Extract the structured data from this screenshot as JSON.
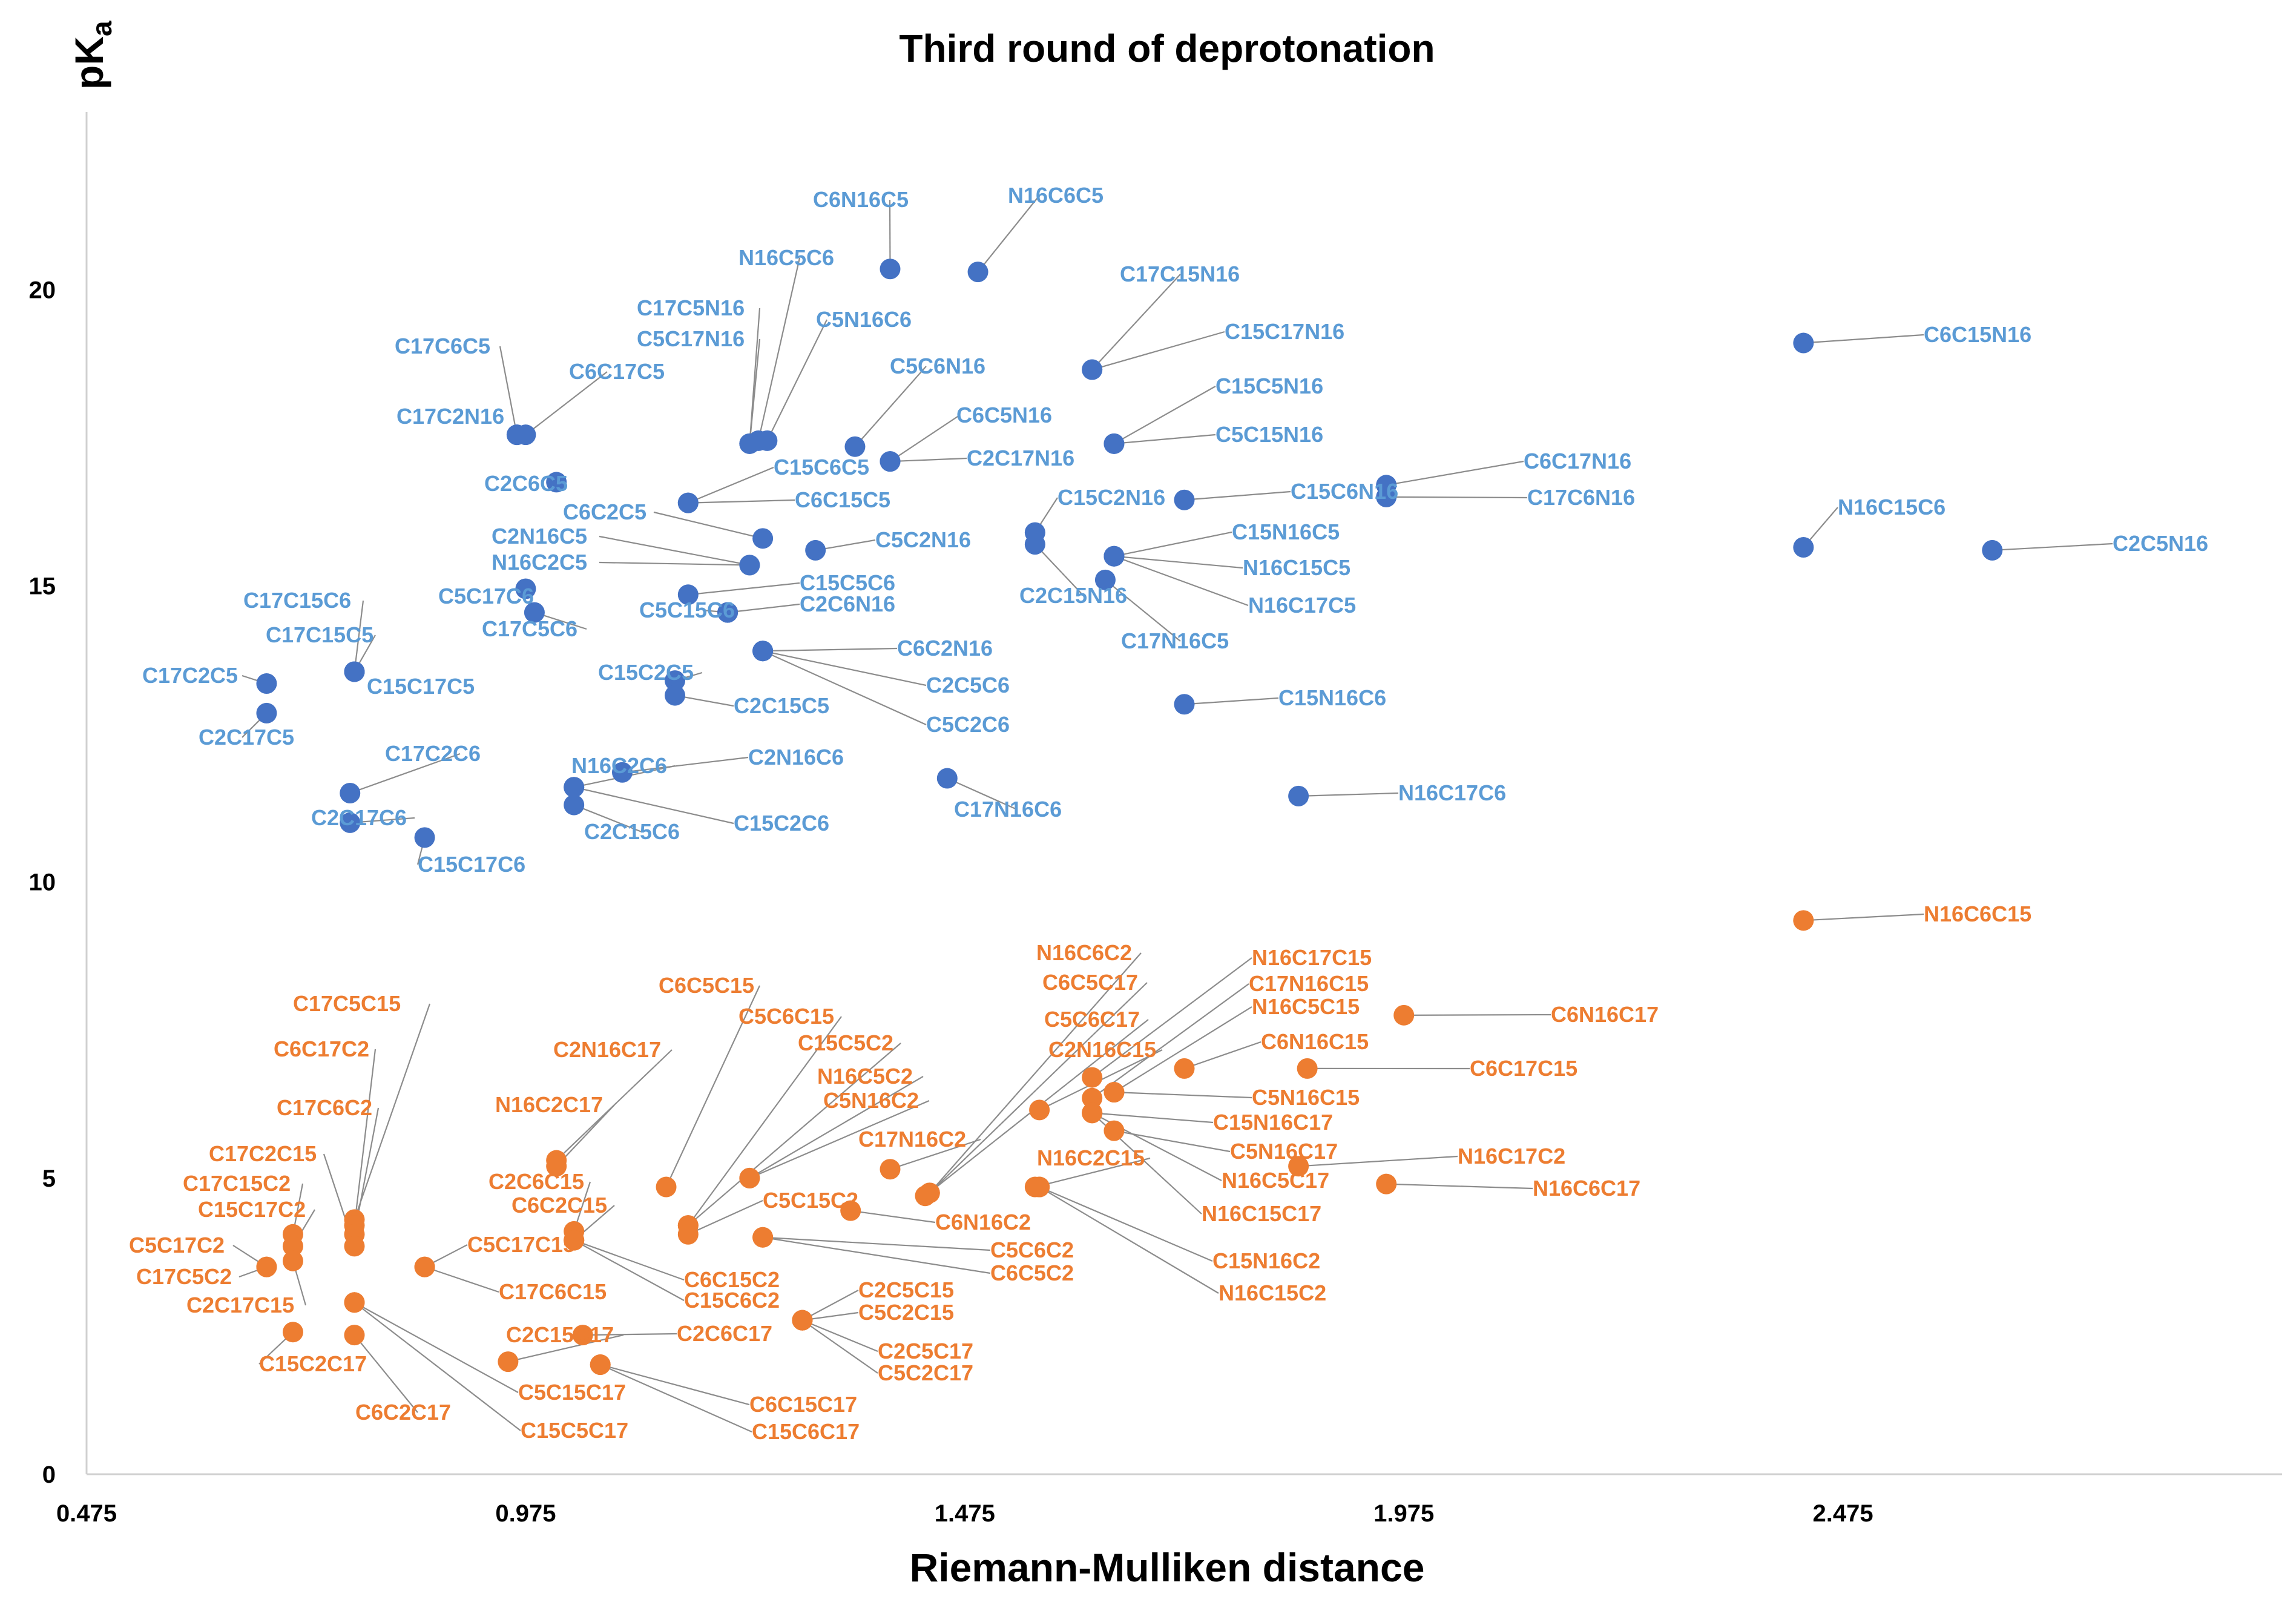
{
  "chart_data": {
    "type": "scatter",
    "title": "Third round of deprotonation",
    "xlabel": "Riemann-Mulliken distance",
    "ylabel": "pKa",
    "xlim": [
      0.475,
      2.975
    ],
    "ylim": [
      0,
      23
    ],
    "x_ticks": [
      "0.475",
      "0.975",
      "1.475",
      "1.975",
      "2.475"
    ],
    "y_ticks": [
      "0",
      "5",
      "10",
      "15",
      "20"
    ],
    "grid": false,
    "legend": "none",
    "colors": {
      "blue": "#4472C4",
      "blue_label": "#5B9BD5",
      "orange": "#ED7D31"
    },
    "series": [
      {
        "color": "blue",
        "points": [
          {
            "x": 1.39,
            "y": 20.35,
            "label": "C6N16C5"
          },
          {
            "x": 1.49,
            "y": 20.3,
            "label": "N16C6C5"
          },
          {
            "x": 1.24,
            "y": 17.45,
            "label": "N16C5C6"
          },
          {
            "x": 1.23,
            "y": 17.4,
            "label": "C17C5N16"
          },
          {
            "x": 1.23,
            "y": 17.4,
            "label": "C5C17N16"
          },
          {
            "x": 1.25,
            "y": 17.45,
            "label": "C5N16C6"
          },
          {
            "x": 1.35,
            "y": 17.35,
            "label": "C5C6N16"
          },
          {
            "x": 1.39,
            "y": 17.1,
            "label": "C6C5N16"
          },
          {
            "x": 1.39,
            "y": 17.1,
            "label": "C2C17N16"
          },
          {
            "x": 1.62,
            "y": 18.65,
            "label": "C17C15N16"
          },
          {
            "x": 1.62,
            "y": 18.65,
            "label": "C15C17N16"
          },
          {
            "x": 1.645,
            "y": 17.4,
            "label": "C15C5N16"
          },
          {
            "x": 1.645,
            "y": 17.4,
            "label": "C5C15N16"
          },
          {
            "x": 1.725,
            "y": 16.45,
            "label": "C15C6N16"
          },
          {
            "x": 1.955,
            "y": 16.7,
            "label": "C6C17N16"
          },
          {
            "x": 1.955,
            "y": 16.5,
            "label": "C17C6N16"
          },
          {
            "x": 2.43,
            "y": 19.1,
            "label": "C6C15N16"
          },
          {
            "x": 2.43,
            "y": 15.65,
            "label": "N16C15C6"
          },
          {
            "x": 2.645,
            "y": 15.6,
            "label": "C2C5N16"
          },
          {
            "x": 0.965,
            "y": 17.55,
            "label": "C17C6C5"
          },
          {
            "x": 0.975,
            "y": 17.55,
            "label": "C6C17C5"
          },
          {
            "x": 0.965,
            "y": 17.55,
            "label": "C17C2N16"
          },
          {
            "x": 1.01,
            "y": 16.75,
            "label": "C2C6C5"
          },
          {
            "x": 1.16,
            "y": 16.4,
            "label": "C15C6C5"
          },
          {
            "x": 1.16,
            "y": 16.4,
            "label": "C6C15C5"
          },
          {
            "x": 1.245,
            "y": 15.8,
            "label": "C6C2C5"
          },
          {
            "x": 1.23,
            "y": 15.35,
            "label": "C2N16C5"
          },
          {
            "x": 1.23,
            "y": 15.35,
            "label": "N16C2C5"
          },
          {
            "x": 1.305,
            "y": 15.6,
            "label": "C5C2N16"
          },
          {
            "x": 0.975,
            "y": 14.95,
            "label": "C5C17C6"
          },
          {
            "x": 0.985,
            "y": 14.55,
            "label": "C17C5C6"
          },
          {
            "x": 1.16,
            "y": 14.85,
            "label": "C15C5C6"
          },
          {
            "x": 1.205,
            "y": 14.55,
            "label": "C5C15C6"
          },
          {
            "x": 1.205,
            "y": 14.55,
            "label": "C2C6N16"
          },
          {
            "x": 1.245,
            "y": 13.9,
            "label": "C6C2N16"
          },
          {
            "x": 1.145,
            "y": 13.4,
            "label": "C15C2C5"
          },
          {
            "x": 1.145,
            "y": 13.15,
            "label": "C2C15C5"
          },
          {
            "x": 1.245,
            "y": 13.9,
            "label": "C2C5C6"
          },
          {
            "x": 1.245,
            "y": 13.9,
            "label": "C5C2C6"
          },
          {
            "x": 1.555,
            "y": 15.9,
            "label": "C15C2N16"
          },
          {
            "x": 1.555,
            "y": 15.7,
            "label": "C2C15N16"
          },
          {
            "x": 1.645,
            "y": 15.5,
            "label": "C15N16C5"
          },
          {
            "x": 1.645,
            "y": 15.5,
            "label": "N16C15C5"
          },
          {
            "x": 1.645,
            "y": 15.5,
            "label": "N16C17C5"
          },
          {
            "x": 1.635,
            "y": 15.1,
            "label": "C17N16C5"
          },
          {
            "x": 0.78,
            "y": 13.55,
            "label": "C17C15C6"
          },
          {
            "x": 0.78,
            "y": 13.55,
            "label": "C17C15C5"
          },
          {
            "x": 0.78,
            "y": 13.55,
            "label": "C15C17C5"
          },
          {
            "x": 0.68,
            "y": 13.35,
            "label": "C17C2C5"
          },
          {
            "x": 0.68,
            "y": 12.85,
            "label": "C2C17C5"
          },
          {
            "x": 0.775,
            "y": 11.5,
            "label": "C17C2C6"
          },
          {
            "x": 0.775,
            "y": 11.0,
            "label": "C2C17C6"
          },
          {
            "x": 0.86,
            "y": 10.75,
            "label": "C15C17C6"
          },
          {
            "x": 1.03,
            "y": 11.6,
            "label": "N16C2C6"
          },
          {
            "x": 1.085,
            "y": 11.85,
            "label": "C2N16C6"
          },
          {
            "x": 1.03,
            "y": 11.3,
            "label": "C2C15C6"
          },
          {
            "x": 1.03,
            "y": 11.6,
            "label": "C15C2C6"
          },
          {
            "x": 1.455,
            "y": 11.75,
            "label": "C17N16C6"
          },
          {
            "x": 1.725,
            "y": 13.0,
            "label": "C15N16C6"
          },
          {
            "x": 1.855,
            "y": 11.45,
            "label": "N16C17C6"
          }
        ]
      },
      {
        "color": "orange",
        "points": [
          {
            "x": 2.43,
            "y": 9.35,
            "label": "N16C6C15"
          },
          {
            "x": 1.975,
            "y": 7.75,
            "label": "C6N16C17"
          },
          {
            "x": 1.865,
            "y": 6.85,
            "label": "C6C17C15"
          },
          {
            "x": 1.725,
            "y": 6.85,
            "label": "C6N16C15"
          },
          {
            "x": 1.62,
            "y": 6.7,
            "label": "N16C17C15"
          },
          {
            "x": 1.62,
            "y": 6.35,
            "label": "C17N16C15"
          },
          {
            "x": 1.645,
            "y": 6.45,
            "label": "N16C5C15"
          },
          {
            "x": 1.645,
            "y": 6.45,
            "label": "C5N16C15"
          },
          {
            "x": 1.62,
            "y": 6.1,
            "label": "C15N16C17"
          },
          {
            "x": 1.645,
            "y": 5.8,
            "label": "C5N16C17"
          },
          {
            "x": 1.62,
            "y": 6.1,
            "label": "N16C5C17"
          },
          {
            "x": 1.62,
            "y": 6.1,
            "label": "N16C15C17"
          },
          {
            "x": 1.56,
            "y": 6.15,
            "label": "C2N16C15"
          },
          {
            "x": 1.555,
            "y": 4.85,
            "label": "N16C2C15"
          },
          {
            "x": 1.56,
            "y": 4.85,
            "label": "C15N16C2"
          },
          {
            "x": 1.56,
            "y": 4.85,
            "label": "N16C15C2"
          },
          {
            "x": 1.855,
            "y": 5.2,
            "label": "N16C17C2"
          },
          {
            "x": 1.955,
            "y": 4.9,
            "label": "N16C6C17"
          },
          {
            "x": 1.435,
            "y": 4.75,
            "label": "N16C6C2"
          },
          {
            "x": 1.435,
            "y": 4.75,
            "label": "C6C5C17"
          },
          {
            "x": 1.43,
            "y": 4.7,
            "label": "C5C6C17"
          },
          {
            "x": 1.39,
            "y": 5.15,
            "label": "C17N16C2"
          },
          {
            "x": 1.345,
            "y": 4.45,
            "label": "C6N16C2"
          },
          {
            "x": 1.245,
            "y": 4.0,
            "label": "C5C6C2"
          },
          {
            "x": 1.245,
            "y": 4.0,
            "label": "C6C5C2"
          },
          {
            "x": 1.23,
            "y": 5.0,
            "label": "N16C5C2"
          },
          {
            "x": 1.23,
            "y": 5.0,
            "label": "C5N16C2"
          },
          {
            "x": 1.135,
            "y": 4.85,
            "label": "C6C5C15"
          },
          {
            "x": 1.16,
            "y": 4.2,
            "label": "C5C6C15"
          },
          {
            "x": 1.16,
            "y": 4.2,
            "label": "C15C5C2"
          },
          {
            "x": 1.16,
            "y": 4.05,
            "label": "C5C15C2"
          },
          {
            "x": 1.29,
            "y": 2.6,
            "label": "C2C5C15"
          },
          {
            "x": 1.29,
            "y": 2.6,
            "label": "C5C2C15"
          },
          {
            "x": 1.29,
            "y": 2.6,
            "label": "C2C5C17"
          },
          {
            "x": 1.29,
            "y": 2.6,
            "label": "C5C2C17"
          },
          {
            "x": 1.01,
            "y": 5.3,
            "label": "C2N16C17"
          },
          {
            "x": 1.01,
            "y": 5.2,
            "label": "N16C2C17"
          },
          {
            "x": 1.03,
            "y": 4.1,
            "label": "C2C6C15"
          },
          {
            "x": 1.03,
            "y": 3.95,
            "label": "C6C2C15"
          },
          {
            "x": 1.03,
            "y": 3.95,
            "label": "C6C15C2"
          },
          {
            "x": 1.03,
            "y": 3.95,
            "label": "C15C6C2"
          },
          {
            "x": 1.04,
            "y": 2.35,
            "label": "C2C6C17"
          },
          {
            "x": 0.955,
            "y": 1.9,
            "label": "C2C15C17"
          },
          {
            "x": 1.06,
            "y": 1.85,
            "label": "C6C15C17"
          },
          {
            "x": 1.06,
            "y": 1.85,
            "label": "C15C6C17"
          },
          {
            "x": 0.86,
            "y": 3.5,
            "label": "C5C17C15"
          },
          {
            "x": 0.86,
            "y": 3.5,
            "label": "C17C6C15"
          },
          {
            "x": 0.78,
            "y": 4.3,
            "label": "C17C5C15"
          },
          {
            "x": 0.78,
            "y": 4.2,
            "label": "C6C17C2"
          },
          {
            "x": 0.78,
            "y": 4.05,
            "label": "C17C6C2"
          },
          {
            "x": 0.78,
            "y": 3.85,
            "label": "C17C2C15"
          },
          {
            "x": 0.71,
            "y": 4.05,
            "label": "C17C15C2"
          },
          {
            "x": 0.71,
            "y": 3.85,
            "label": "C15C17C2"
          },
          {
            "x": 0.68,
            "y": 3.5,
            "label": "C5C17C2"
          },
          {
            "x": 0.68,
            "y": 3.5,
            "label": "C17C5C2"
          },
          {
            "x": 0.71,
            "y": 3.6,
            "label": "C2C17C15"
          },
          {
            "x": 0.71,
            "y": 2.4,
            "label": "C15C2C17"
          },
          {
            "x": 0.78,
            "y": 2.35,
            "label": "C6C2C17"
          },
          {
            "x": 0.78,
            "y": 2.9,
            "label": "C5C15C17"
          },
          {
            "x": 0.78,
            "y": 2.9,
            "label": "C15C5C17"
          }
        ]
      }
    ]
  }
}
